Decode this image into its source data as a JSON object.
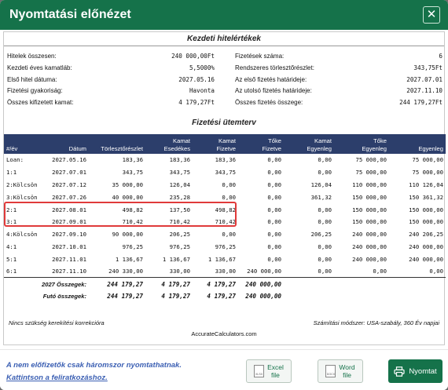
{
  "dialog": {
    "title": "Nyomtatási előnézet",
    "close_label": "✕"
  },
  "summary": {
    "title": "Kezdeti hitelértékek",
    "left": [
      {
        "label": "Hitelek összesen:",
        "value": "240 000,00Ft"
      },
      {
        "label": "Kezdeti éves kamatláb:",
        "value": "5,5000%"
      },
      {
        "label": "Első hitel dátuma:",
        "value": "2027.05.16"
      },
      {
        "label": "Fizetési gyakoriság:",
        "value": "Havonta"
      },
      {
        "label": "Összes kifizetett kamat:",
        "value": "4 179,27Ft"
      }
    ],
    "right": [
      {
        "label": "Fizetések száma:",
        "value": "6"
      },
      {
        "label": "Rendszeres törlesztőrészlet:",
        "value": "343,75Ft"
      },
      {
        "label": "Az első fizetés határideje:",
        "value": "2027.07.01"
      },
      {
        "label": "Az utolsó fizetés határideje:",
        "value": "2027.11.10"
      },
      {
        "label": "Összes fizetés összege:",
        "value": "244 179,27Ft"
      }
    ]
  },
  "schedule": {
    "title": "Fizetési ütemterv",
    "headers": [
      [
        "#/év"
      ],
      [
        "Dátum"
      ],
      [
        "Törlesztőrészlet"
      ],
      [
        "Kamat",
        "Esedékes"
      ],
      [
        "Kamat",
        "Fizetve"
      ],
      [
        "Tőke",
        "Fizetve"
      ],
      [
        "Kamat",
        "Egyenleg"
      ],
      [
        "Tőke",
        "Egyenleg"
      ],
      [
        "Egyenleg"
      ]
    ],
    "rows": [
      [
        "Loan:",
        "2027.05.16",
        "183,36",
        "183,36",
        "183,36",
        "0,00",
        "0,00",
        "75 000,00",
        "75 000,00"
      ],
      [
        "1:1",
        "2027.07.01",
        "343,75",
        "343,75",
        "343,75",
        "0,00",
        "0,00",
        "75 000,00",
        "75 000,00"
      ],
      [
        "2:Kölcsön",
        "2027.07.12",
        "35 000,00",
        "126,04",
        "0,00",
        "0,00",
        "126,04",
        "110 000,00",
        "110 126,04"
      ],
      [
        "3:Kölcsön",
        "2027.07.26",
        "40 000,00",
        "235,28",
        "0,00",
        "0,00",
        "361,32",
        "150 000,00",
        "150 361,32"
      ],
      [
        "2:1",
        "2027.08.01",
        "498,82",
        "137,50",
        "498,82",
        "0,00",
        "0,00",
        "150 000,00",
        "150 000,00"
      ],
      [
        "3:1",
        "2027.09.01",
        "710,42",
        "710,42",
        "710,42",
        "0,00",
        "0,00",
        "150 000,00",
        "150 000,00"
      ],
      [
        "4:Kölcsön",
        "2027.09.10",
        "90 000,00",
        "206,25",
        "0,00",
        "0,00",
        "206,25",
        "240 000,00",
        "240 206,25"
      ],
      [
        "4:1",
        "2027.10.01",
        "976,25",
        "976,25",
        "976,25",
        "0,00",
        "0,00",
        "240 000,00",
        "240 000,00"
      ],
      [
        "5:1",
        "2027.11.01",
        "1 136,67",
        "1 136,67",
        "1 136,67",
        "0,00",
        "0,00",
        "240 000,00",
        "240 000,00"
      ],
      [
        "6:1",
        "2027.11.10",
        "240 330,00",
        "330,00",
        "330,00",
        "240 000,00",
        "0,00",
        "0,00",
        "0,00"
      ]
    ],
    "sums": [
      [
        "2027 Összegek:",
        "244 179,27",
        "4 179,27",
        "4 179,27",
        "240 000,00"
      ],
      [
        "Futó összegek:",
        "244 179,27",
        "4 179,27",
        "4 179,27",
        "240 000,00"
      ]
    ],
    "note_left": "Nincs szükség kerekítési korrekcióra",
    "note_right": "Számítási módszer: USA-szabály, 360 Év napjai",
    "site": "AccurateCalculators.com"
  },
  "footer": {
    "note_line1": "A nem előfizetők csak háromszor nyomtathatnak.",
    "note_line2": "Kattintson a feliratkozáshoz.",
    "excel": {
      "line1": "Excel",
      "line2": "file",
      "ico": "XLSX"
    },
    "word": {
      "line1": "Word",
      "line2": "file",
      "ico": "DOCX"
    },
    "print_label": "Nyomtat"
  },
  "colors": {
    "header_bg": "#15724a",
    "table_header_bg": "#2c3e6b",
    "highlight": "#e03a3a",
    "note_text": "#3b5fb3"
  }
}
